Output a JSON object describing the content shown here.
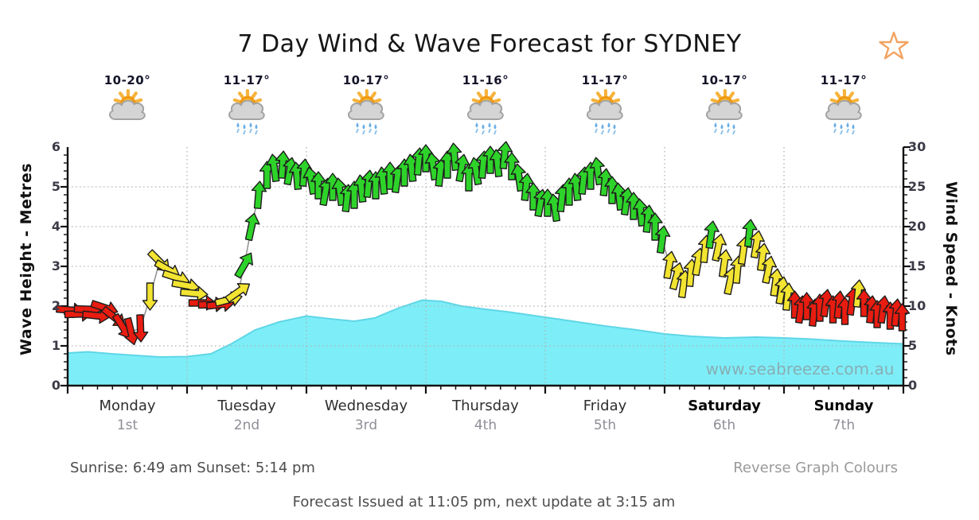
{
  "page": {
    "title": "7 Day Wind & Wave Forecast for SYDNEY",
    "sunrise_sunset": "Sunrise: 6:49 am  Sunset: 5:14 pm",
    "reverse_link": "Reverse Graph Colours",
    "issued": "Forecast Issued at 11:05 pm, next update at 3:15 am",
    "watermark": "www.seabreeze.com.au",
    "star_icon_color": "#f2a25f"
  },
  "days": [
    {
      "name": "Monday",
      "date": "1st",
      "temp": "10-20°",
      "icon": "sun-cloud",
      "weekend": false
    },
    {
      "name": "Tuesday",
      "date": "2nd",
      "temp": "11-17°",
      "icon": "sun-cloud-rain",
      "weekend": false
    },
    {
      "name": "Wednesday",
      "date": "3rd",
      "temp": "10-17°",
      "icon": "sun-cloud-rain",
      "weekend": false
    },
    {
      "name": "Thursday",
      "date": "4th",
      "temp": "11-16°",
      "icon": "sun-cloud-rain",
      "weekend": false
    },
    {
      "name": "Friday",
      "date": "5th",
      "temp": "11-17°",
      "icon": "sun-cloud-rain",
      "weekend": false
    },
    {
      "name": "Saturday",
      "date": "6th",
      "temp": "10-17°",
      "icon": "sun-cloud-rain",
      "weekend": true
    },
    {
      "name": "Sunday",
      "date": "7th",
      "temp": "11-17°",
      "icon": "sun-cloud-rain",
      "weekend": true
    }
  ],
  "chart_data": {
    "type": "area+wind-arrows",
    "title": "7 Day Wind & Wave Forecast for SYDNEY",
    "left_axis": {
      "label": "Wave Height - Metres",
      "min": 0,
      "max": 6,
      "ticks": [
        0,
        1,
        2,
        3,
        4,
        5,
        6
      ]
    },
    "right_axis": {
      "label": "Wind Speed - Knots",
      "min": 0,
      "max": 30,
      "ticks": [
        0,
        5,
        10,
        15,
        20,
        25,
        30
      ]
    },
    "x_axis": {
      "categories": [
        "Monday 1st",
        "Tuesday 2nd",
        "Wednesday 3rd",
        "Thursday 4th",
        "Friday 5th",
        "Saturday 6th",
        "Sunday 7th"
      ],
      "units": "days",
      "range": [
        0,
        7
      ]
    },
    "grid": {
      "horizontal_dotted_at": [
        1,
        2,
        3,
        4,
        5
      ],
      "vertical_dotted_at_day_boundaries": [
        1,
        2,
        3,
        4,
        5,
        6
      ]
    },
    "colors": {
      "r": "#e81c10",
      "y": "#f2e431",
      "g": "#2ed32a",
      "wave_fill": "#7deef8",
      "wave_edge": "#5fd6e6",
      "wind_line": "#909090",
      "arrow_outline": "#1c1c1c",
      "grid": "#b2b2b2",
      "axis": "#111111"
    },
    "wave_height_m": [
      [
        0,
        0.82
      ],
      [
        0.17,
        0.85
      ],
      [
        0.37,
        0.8
      ],
      [
        0.57,
        0.76
      ],
      [
        0.77,
        0.72
      ],
      [
        1.0,
        0.73
      ],
      [
        1.2,
        0.8
      ],
      [
        1.37,
        1.05
      ],
      [
        1.57,
        1.4
      ],
      [
        1.77,
        1.6
      ],
      [
        2.0,
        1.75
      ],
      [
        2.2,
        1.68
      ],
      [
        2.4,
        1.62
      ],
      [
        2.57,
        1.7
      ],
      [
        2.77,
        1.95
      ],
      [
        2.97,
        2.15
      ],
      [
        3.13,
        2.12
      ],
      [
        3.3,
        2.0
      ],
      [
        3.5,
        1.92
      ],
      [
        3.7,
        1.85
      ],
      [
        4.0,
        1.72
      ],
      [
        4.23,
        1.62
      ],
      [
        4.5,
        1.5
      ],
      [
        4.77,
        1.4
      ],
      [
        5.0,
        1.3
      ],
      [
        5.23,
        1.24
      ],
      [
        5.5,
        1.2
      ],
      [
        5.77,
        1.22
      ],
      [
        6.0,
        1.2
      ],
      [
        6.23,
        1.17
      ],
      [
        6.5,
        1.12
      ],
      [
        6.77,
        1.08
      ],
      [
        7.0,
        1.05
      ]
    ],
    "wind_arrows_day_knots_dir_color": [
      [
        0.02,
        9.5,
        95,
        "r"
      ],
      [
        0.09,
        9.0,
        88,
        "r"
      ],
      [
        0.17,
        9.6,
        92,
        "r"
      ],
      [
        0.24,
        8.8,
        96,
        "r"
      ],
      [
        0.31,
        9.8,
        108,
        "r"
      ],
      [
        0.39,
        8.6,
        128,
        "r"
      ],
      [
        0.46,
        7.4,
        148,
        "r"
      ],
      [
        0.53,
        6.8,
        166,
        "r"
      ],
      [
        0.61,
        7.2,
        178,
        "r"
      ],
      [
        0.69,
        11.2,
        180,
        "y"
      ],
      [
        0.77,
        15.6,
        135,
        "y"
      ],
      [
        0.84,
        14.6,
        120,
        "y"
      ],
      [
        0.91,
        13.6,
        108,
        "y"
      ],
      [
        0.99,
        12.6,
        100,
        "y"
      ],
      [
        1.06,
        11.6,
        95,
        "y"
      ],
      [
        1.13,
        10.4,
        90,
        "r"
      ],
      [
        1.21,
        10.2,
        88,
        "r"
      ],
      [
        1.28,
        10.2,
        84,
        "r"
      ],
      [
        1.35,
        10.8,
        76,
        "y"
      ],
      [
        1.43,
        11.8,
        55,
        "y"
      ],
      [
        1.48,
        15.2,
        30,
        "g"
      ],
      [
        1.54,
        20.0,
        12,
        "g"
      ],
      [
        1.6,
        24.0,
        5,
        "g"
      ],
      [
        1.67,
        26.5,
        0,
        "g"
      ],
      [
        1.73,
        27.4,
        -8,
        "g"
      ],
      [
        1.8,
        27.8,
        4,
        "g"
      ],
      [
        1.86,
        27.0,
        10,
        "g"
      ],
      [
        1.92,
        26.4,
        -5,
        "g"
      ],
      [
        1.98,
        26.8,
        5,
        "g"
      ],
      [
        2.04,
        25.8,
        -10,
        "g"
      ],
      [
        2.1,
        25.2,
        0,
        "g"
      ],
      [
        2.16,
        24.4,
        10,
        "g"
      ],
      [
        2.22,
        25.0,
        0,
        "g"
      ],
      [
        2.28,
        24.4,
        -8,
        "g"
      ],
      [
        2.34,
        23.6,
        6,
        "g"
      ],
      [
        2.4,
        24.0,
        0,
        "g"
      ],
      [
        2.46,
        24.8,
        -6,
        "g"
      ],
      [
        2.52,
        25.4,
        6,
        "g"
      ],
      [
        2.58,
        25.2,
        0,
        "g"
      ],
      [
        2.64,
        25.8,
        -6,
        "g"
      ],
      [
        2.7,
        26.4,
        0,
        "g"
      ],
      [
        2.76,
        26.0,
        8,
        "g"
      ],
      [
        2.82,
        26.8,
        0,
        "g"
      ],
      [
        2.88,
        27.4,
        -6,
        "g"
      ],
      [
        2.94,
        28.2,
        5,
        "g"
      ],
      [
        3.0,
        28.6,
        0,
        "g"
      ],
      [
        3.06,
        27.6,
        -8,
        "g"
      ],
      [
        3.12,
        26.8,
        6,
        "g"
      ],
      [
        3.18,
        27.8,
        0,
        "g"
      ],
      [
        3.24,
        28.8,
        -5,
        "g"
      ],
      [
        3.3,
        27.4,
        10,
        "g"
      ],
      [
        3.36,
        26.2,
        0,
        "g"
      ],
      [
        3.42,
        27.0,
        -10,
        "g"
      ],
      [
        3.48,
        27.8,
        5,
        "g"
      ],
      [
        3.54,
        28.4,
        0,
        "g"
      ],
      [
        3.6,
        28.0,
        -6,
        "g"
      ],
      [
        3.66,
        29.0,
        6,
        "g"
      ],
      [
        3.72,
        27.6,
        0,
        "g"
      ],
      [
        3.78,
        26.2,
        -8,
        "g"
      ],
      [
        3.84,
        25.0,
        6,
        "g"
      ],
      [
        3.9,
        23.8,
        0,
        "g"
      ],
      [
        3.96,
        23.0,
        10,
        "g"
      ],
      [
        4.02,
        23.0,
        0,
        "g"
      ],
      [
        4.08,
        22.4,
        -8,
        "g"
      ],
      [
        4.14,
        23.6,
        6,
        "g"
      ],
      [
        4.2,
        24.4,
        0,
        "g"
      ],
      [
        4.26,
        25.0,
        -6,
        "g"
      ],
      [
        4.32,
        25.8,
        6,
        "g"
      ],
      [
        4.38,
        26.4,
        0,
        "g"
      ],
      [
        4.44,
        27.0,
        -8,
        "g"
      ],
      [
        4.5,
        25.6,
        6,
        "g"
      ],
      [
        4.56,
        24.6,
        0,
        "g"
      ],
      [
        4.62,
        23.8,
        -6,
        "g"
      ],
      [
        4.68,
        23.2,
        8,
        "g"
      ],
      [
        4.74,
        22.6,
        0,
        "g"
      ],
      [
        4.8,
        21.8,
        -6,
        "g"
      ],
      [
        4.86,
        21.0,
        6,
        "g"
      ],
      [
        4.92,
        20.0,
        0,
        "g"
      ],
      [
        4.98,
        18.4,
        8,
        "g"
      ],
      [
        5.04,
        15.2,
        10,
        "y"
      ],
      [
        5.1,
        13.8,
        15,
        "y"
      ],
      [
        5.16,
        12.8,
        8,
        "y"
      ],
      [
        5.22,
        14.2,
        5,
        "y"
      ],
      [
        5.28,
        15.6,
        10,
        "y"
      ],
      [
        5.34,
        17.2,
        6,
        "y"
      ],
      [
        5.39,
        19.0,
        8,
        "g"
      ],
      [
        5.45,
        17.4,
        12,
        "y"
      ],
      [
        5.5,
        15.4,
        8,
        "y"
      ],
      [
        5.55,
        13.2,
        12,
        "y"
      ],
      [
        5.61,
        14.6,
        5,
        "y"
      ],
      [
        5.66,
        17.0,
        8,
        "y"
      ],
      [
        5.71,
        19.2,
        6,
        "g"
      ],
      [
        5.77,
        17.8,
        10,
        "y"
      ],
      [
        5.82,
        16.2,
        8,
        "y"
      ],
      [
        5.87,
        14.6,
        12,
        "y"
      ],
      [
        5.93,
        13.0,
        8,
        "y"
      ],
      [
        5.98,
        12.0,
        10,
        "y"
      ],
      [
        6.03,
        11.2,
        6,
        "y"
      ],
      [
        6.09,
        10.2,
        0,
        "r"
      ],
      [
        6.14,
        9.6,
        8,
        "r"
      ],
      [
        6.19,
        10.0,
        0,
        "r"
      ],
      [
        6.25,
        9.2,
        6,
        "r"
      ],
      [
        6.3,
        9.8,
        0,
        "r"
      ],
      [
        6.35,
        10.4,
        8,
        "r"
      ],
      [
        6.41,
        9.6,
        0,
        "r"
      ],
      [
        6.46,
        10.2,
        6,
        "r"
      ],
      [
        6.51,
        9.4,
        0,
        "r"
      ],
      [
        6.57,
        10.6,
        8,
        "r"
      ],
      [
        6.62,
        11.6,
        6,
        "y"
      ],
      [
        6.67,
        10.4,
        0,
        "r"
      ],
      [
        6.73,
        9.6,
        6,
        "r"
      ],
      [
        6.78,
        9.0,
        0,
        "r"
      ],
      [
        6.83,
        9.6,
        8,
        "r"
      ],
      [
        6.89,
        8.8,
        0,
        "r"
      ],
      [
        6.94,
        9.2,
        6,
        "r"
      ],
      [
        6.99,
        8.6,
        0,
        "r"
      ]
    ]
  }
}
